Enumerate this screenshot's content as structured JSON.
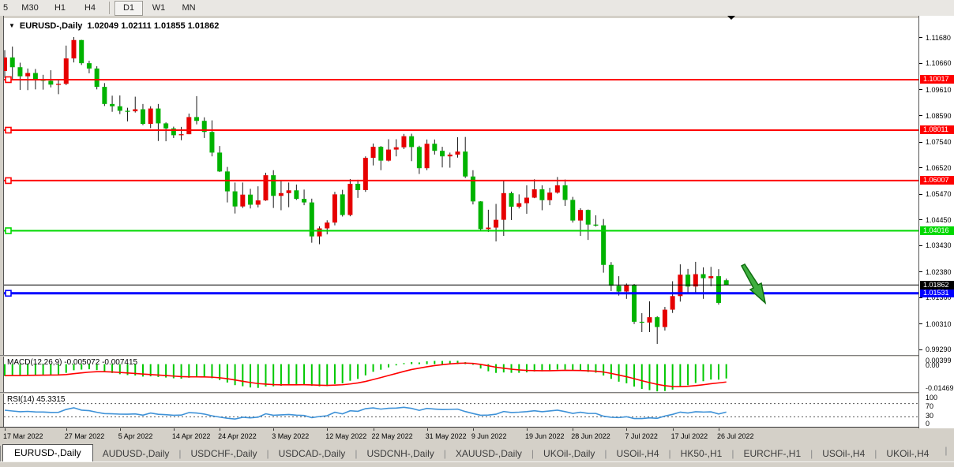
{
  "toolbar": {
    "buttons": [
      {
        "label": "5",
        "active": false
      },
      {
        "label": "M30",
        "active": false
      },
      {
        "label": "H1",
        "active": false
      },
      {
        "label": "H4",
        "active": false
      },
      {
        "label": "D1",
        "active": true
      },
      {
        "label": "W1",
        "active": false
      },
      {
        "label": "MN",
        "active": false
      }
    ],
    "separator_before": "D1"
  },
  "chart": {
    "symbol_title": "EURUSD-,Daily",
    "ohlc_text": "1.02049 1.02111 1.01855 1.01862",
    "open": "1.02049",
    "high": "1.02111",
    "low": "1.01855",
    "close": "1.01862"
  },
  "colors": {
    "bull": "#e60000",
    "bear": "#00b300",
    "wick": "#1a1a1a",
    "line_red": "#ff0000",
    "line_green": "#00d800",
    "line_blue": "#0000ff",
    "line_black": "#000000",
    "macd_hist": "#00c800",
    "macd_signal": "#ff0000",
    "rsi_line": "#3e92d8",
    "badge_black": "#000000",
    "arrow_fill": "#3fae3f",
    "arrow_stroke": "#0f6e0f"
  },
  "chart_data": {
    "type": "candlestick",
    "symbol": "EURUSD",
    "timeframe": "Daily",
    "price_scale": {
      "top": 1.1246,
      "bottom": 0.9908
    },
    "bar_spacing": 9.72,
    "axis_ticks": [
      "1.11680",
      "1.10660",
      "1.09610",
      "1.08590",
      "1.07540",
      "1.06520",
      "1.05470",
      "1.04450",
      "1.03430",
      "1.02380",
      "1.01360",
      "1.00310",
      "0.99290"
    ],
    "horizontal_lines": [
      {
        "price": 1.10017,
        "label": "1.10017",
        "color": "#ff0000",
        "width": 2,
        "handle": true
      },
      {
        "price": 1.08011,
        "label": "1.08011",
        "color": "#ff0000",
        "width": 2,
        "handle": true
      },
      {
        "price": 1.06007,
        "label": "1.06007",
        "color": "#ff0000",
        "width": 2,
        "handle": true
      },
      {
        "price": 1.04016,
        "label": "1.04016",
        "color": "#00d800",
        "width": 2,
        "handle": true
      },
      {
        "price": 1.01531,
        "label": "1.01531",
        "color": "#0000ff",
        "width": 3,
        "handle": true
      }
    ],
    "current_price": {
      "price": 1.01862,
      "label": "1.01862"
    },
    "candles": [
      [
        1.1036,
        1.1119,
        1.1009,
        1.109
      ],
      [
        1.109,
        1.1133,
        1.1003,
        1.1051
      ],
      [
        1.1051,
        1.1069,
        1.0961,
        1.1015
      ],
      [
        1.1015,
        1.1046,
        1.096,
        1.1028
      ],
      [
        1.1028,
        1.1044,
        1.0963,
        1.1004
      ],
      [
        1.1004,
        1.1021,
        1.0962,
        1.0997
      ],
      [
        1.0997,
        1.1039,
        1.0971,
        1.0982
      ],
      [
        1.0982,
        1.1,
        1.0944,
        1.0985
      ],
      [
        1.0985,
        1.1137,
        1.098,
        1.1086
      ],
      [
        1.1086,
        1.1171,
        1.107,
        1.1159
      ],
      [
        1.1159,
        1.116,
        1.106,
        1.1067
      ],
      [
        1.1067,
        1.1077,
        1.1027,
        1.1046
      ],
      [
        1.1046,
        1.1055,
        1.0963,
        1.0973
      ],
      [
        1.0973,
        1.0988,
        1.0897,
        1.0905
      ],
      [
        1.0905,
        1.0938,
        1.0874,
        1.0896
      ],
      [
        1.0896,
        1.0939,
        1.0865,
        1.0878
      ],
      [
        1.0878,
        1.089,
        1.0836,
        1.0876
      ],
      [
        1.0876,
        1.0934,
        1.0871,
        1.0884
      ],
      [
        1.0884,
        1.0905,
        1.0821,
        1.0826
      ],
      [
        1.0826,
        1.0896,
        1.0809,
        1.0887
      ],
      [
        1.0887,
        1.0905,
        1.0758,
        1.0828
      ],
      [
        1.0828,
        1.0832,
        1.0757,
        1.0808
      ],
      [
        1.0808,
        1.0815,
        1.077,
        1.0781
      ],
      [
        1.0781,
        1.0814,
        1.0761,
        1.0785
      ],
      [
        1.0785,
        1.0867,
        1.0785,
        1.0853
      ],
      [
        1.0853,
        1.0936,
        1.0824,
        1.0838
      ],
      [
        1.0838,
        1.0852,
        1.077,
        1.0794
      ],
      [
        1.0794,
        1.084,
        1.0697,
        1.0712
      ],
      [
        1.0712,
        1.0738,
        1.0635,
        1.0637
      ],
      [
        1.0637,
        1.0655,
        1.0514,
        1.0558
      ],
      [
        1.0558,
        1.0593,
        1.047,
        1.0498
      ],
      [
        1.0498,
        1.0593,
        1.0492,
        1.0545
      ],
      [
        1.0545,
        1.0568,
        1.049,
        1.0505
      ],
      [
        1.0505,
        1.0578,
        1.0494,
        1.0522
      ],
      [
        1.0522,
        1.0632,
        1.052,
        1.0622
      ],
      [
        1.0622,
        1.0642,
        1.0492,
        1.054
      ],
      [
        1.054,
        1.0599,
        1.0483,
        1.0551
      ],
      [
        1.0551,
        1.0593,
        1.0495,
        1.0562
      ],
      [
        1.0562,
        1.0585,
        1.0524,
        1.0528
      ],
      [
        1.0528,
        1.0565,
        1.0503,
        1.0514
      ],
      [
        1.0514,
        1.0529,
        1.0354,
        1.0379
      ],
      [
        1.0379,
        1.0419,
        1.0348,
        1.0411
      ],
      [
        1.0411,
        1.0443,
        1.0387,
        1.0434
      ],
      [
        1.0434,
        1.0556,
        1.0423,
        1.0546
      ],
      [
        1.0546,
        1.0564,
        1.0458,
        1.0464
      ],
      [
        1.0464,
        1.0607,
        1.0459,
        1.0588
      ],
      [
        1.0588,
        1.0604,
        1.0532,
        1.0563
      ],
      [
        1.0563,
        1.0697,
        1.0556,
        1.0691
      ],
      [
        1.0691,
        1.0748,
        1.0661,
        1.0735
      ],
      [
        1.0735,
        1.0738,
        1.0642,
        1.068
      ],
      [
        1.068,
        1.0765,
        1.0677,
        1.0724
      ],
      [
        1.0724,
        1.0765,
        1.0697,
        1.0733
      ],
      [
        1.0733,
        1.0786,
        1.0726,
        1.0777
      ],
      [
        1.0777,
        1.0787,
        1.0678,
        1.0734
      ],
      [
        1.0734,
        1.0739,
        1.0627,
        1.065
      ],
      [
        1.065,
        1.0764,
        1.0642,
        1.0747
      ],
      [
        1.0747,
        1.0764,
        1.0704,
        1.0719
      ],
      [
        1.0719,
        1.0735,
        1.0653,
        1.0697
      ],
      [
        1.0697,
        1.0712,
        1.0652,
        1.0704
      ],
      [
        1.0704,
        1.0773,
        1.0692,
        1.0716
      ],
      [
        1.0716,
        1.0774,
        1.0611,
        1.0617
      ],
      [
        1.0617,
        1.0642,
        1.0506,
        1.0518
      ],
      [
        1.0518,
        1.0519,
        1.0399,
        1.0408
      ],
      [
        1.0408,
        1.0485,
        1.0397,
        1.0414
      ],
      [
        1.0414,
        1.0508,
        1.0359,
        1.0445
      ],
      [
        1.0445,
        1.0601,
        1.0381,
        1.0551
      ],
      [
        1.0551,
        1.0557,
        1.0444,
        1.0497
      ],
      [
        1.0497,
        1.0546,
        1.049,
        1.0511
      ],
      [
        1.0511,
        1.0582,
        1.0469,
        1.0533
      ],
      [
        1.0533,
        1.0606,
        1.0531,
        1.0566
      ],
      [
        1.0566,
        1.0582,
        1.0483,
        1.0523
      ],
      [
        1.0523,
        1.0572,
        1.0503,
        1.0553
      ],
      [
        1.0553,
        1.0615,
        1.0549,
        1.0582
      ],
      [
        1.0582,
        1.0605,
        1.05,
        1.0524
      ],
      [
        1.0524,
        1.0536,
        1.0434,
        1.0442
      ],
      [
        1.0442,
        1.0491,
        1.0381,
        1.0484
      ],
      [
        1.0484,
        1.0486,
        1.0365,
        1.0426
      ],
      [
        1.0426,
        1.0463,
        1.0418,
        1.0423
      ],
      [
        1.0423,
        1.0448,
        1.0235,
        1.0266
      ],
      [
        1.0266,
        1.0277,
        1.0162,
        1.0183
      ],
      [
        1.0183,
        1.0221,
        1.0144,
        1.016
      ],
      [
        1.016,
        1.0192,
        1.0131,
        1.0186
      ],
      [
        1.0186,
        1.019,
        1.0031,
        1.004
      ],
      [
        1.004,
        1.0074,
        0.9999,
        1.0037
      ],
      [
        1.0037,
        1.0121,
        0.9999,
        1.0058
      ],
      [
        1.0058,
        1.0062,
        0.9952,
        1.0019
      ],
      [
        1.0019,
        1.0099,
        1.0005,
        1.0088
      ],
      [
        1.0088,
        1.0201,
        1.0075,
        1.0142
      ],
      [
        1.0142,
        1.0268,
        1.012,
        1.0227
      ],
      [
        1.0227,
        1.025,
        1.0154,
        1.018
      ],
      [
        1.018,
        1.0278,
        1.0152,
        1.0229
      ],
      [
        1.0229,
        1.0256,
        1.0131,
        1.0213
      ],
      [
        1.0213,
        1.0258,
        1.0181,
        1.0221
      ],
      [
        1.0221,
        1.0249,
        1.0108,
        1.0115
      ],
      [
        1.02049,
        1.02111,
        1.01855,
        1.01862
      ]
    ],
    "date_labels": [
      {
        "text": "17 Mar 2022",
        "bar": 0
      },
      {
        "text": "27 Mar 2022",
        "bar": 8
      },
      {
        "text": "5 Apr 2022",
        "bar": 15
      },
      {
        "text": "14 Apr 2022",
        "bar": 22
      },
      {
        "text": "24 Apr 2022",
        "bar": 28
      },
      {
        "text": "3 May 2022",
        "bar": 35
      },
      {
        "text": "12 May 2022",
        "bar": 42
      },
      {
        "text": "22 May 2022",
        "bar": 48
      },
      {
        "text": "31 May 2022",
        "bar": 55
      },
      {
        "text": "9 Jun 2022",
        "bar": 61
      },
      {
        "text": "19 Jun 2022",
        "bar": 68
      },
      {
        "text": "28 Jun 2022",
        "bar": 74
      },
      {
        "text": "7 Jul 2022",
        "bar": 81
      },
      {
        "text": "17 Jul 2022",
        "bar": 87
      },
      {
        "text": "26 Jul 2022",
        "bar": 93
      }
    ],
    "annotation_arrow": {
      "points": [
        [
          934,
          314
        ],
        [
          949,
          342
        ],
        [
          945,
          344
        ],
        [
          964,
          361
        ],
        [
          959,
          336
        ],
        [
          955,
          338
        ],
        [
          938,
          312
        ]
      ]
    },
    "macd": {
      "label": "MACD(12,26,9) -0.005072 -0.007415",
      "params": [
        12,
        26,
        9
      ],
      "value": "-0.005072",
      "signal_value": "-0.007415",
      "scale_labels": {
        "max": "0.00399",
        "zero": "0.00",
        "min": "-0.01469"
      },
      "scale": {
        "max": 0.00399,
        "min": -0.01469
      }
    },
    "rsi": {
      "label": "RSI(14) 45.3315",
      "period": 14,
      "value": "45.3315",
      "levels": [
        70,
        30
      ],
      "scale_labels": [
        "100",
        "70",
        "30",
        "0"
      ],
      "scale": {
        "max": 100,
        "min": 0
      }
    }
  },
  "tabs": {
    "items": [
      {
        "label": "EURUSD-,Daily",
        "active": true
      },
      {
        "label": "AUDUSD-,Daily",
        "active": false
      },
      {
        "label": "USDCHF-,Daily",
        "active": false
      },
      {
        "label": "USDCAD-,Daily",
        "active": false
      },
      {
        "label": "USDCNH-,Daily",
        "active": false
      },
      {
        "label": "XAUUSD-,Daily",
        "active": false
      },
      {
        "label": "UKOil-,Daily",
        "active": false
      },
      {
        "label": "USOil-,H4",
        "active": false
      },
      {
        "label": "HK50-,H1",
        "active": false
      },
      {
        "label": "EURCHF-,H1",
        "active": false
      },
      {
        "label": "USOil-,H4",
        "active": false
      },
      {
        "label": "UKOil-,H4",
        "active": false
      }
    ]
  }
}
